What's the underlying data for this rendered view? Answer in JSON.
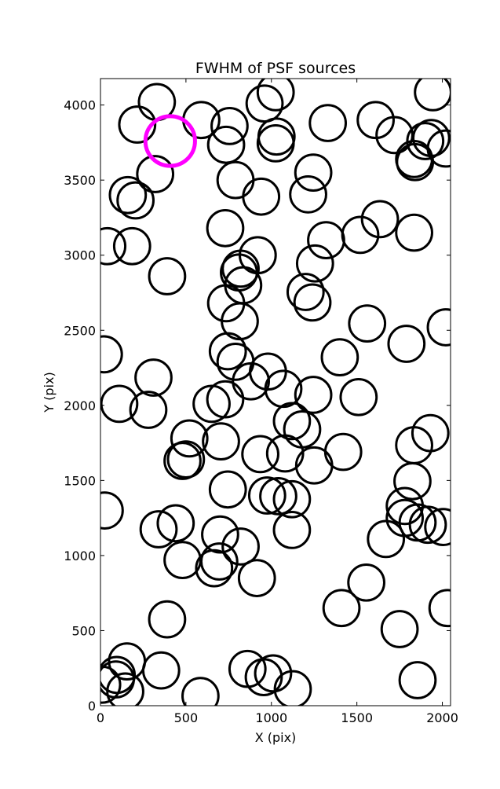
{
  "chart_data": {
    "type": "scatter",
    "title": "FWHM of PSF sources",
    "xlabel": "X (pix)",
    "ylabel": "Y (pix)",
    "xlim": [
      0,
      2048
    ],
    "ylim": [
      0,
      4176
    ],
    "xticks": [
      "0",
      "500",
      "1000",
      "1500",
      "2000"
    ],
    "xtick_values": [
      0,
      500,
      1000,
      1500,
      2000
    ],
    "yticks": [
      "0",
      "500",
      "1000",
      "1500",
      "2000",
      "2500",
      "3000",
      "3500",
      "4000"
    ],
    "ytick_values": [
      0,
      500,
      1000,
      1500,
      2000,
      2500,
      3000,
      3500,
      4000
    ],
    "grid": false,
    "legend": false,
    "marker": "open-circle",
    "circle_radius_pix": 105,
    "highlight_radius_pix": 145,
    "colors": {
      "points": "#000000",
      "highlight": "#ff00ff"
    },
    "highlight": {
      "x": 408,
      "y": 3760
    },
    "points": [
      [
        330,
        4020
      ],
      [
        215,
        3870
      ],
      [
        590,
        3900
      ],
      [
        755,
        3860
      ],
      [
        735,
        3735
      ],
      [
        320,
        3540
      ],
      [
        160,
        3400
      ],
      [
        205,
        3365
      ],
      [
        790,
        3500
      ],
      [
        940,
        3390
      ],
      [
        960,
        4010
      ],
      [
        1025,
        4085
      ],
      [
        1030,
        3790
      ],
      [
        1025,
        3745
      ],
      [
        1215,
        3405
      ],
      [
        1245,
        3550
      ],
      [
        1330,
        3880
      ],
      [
        1610,
        3900
      ],
      [
        1720,
        3800
      ],
      [
        1835,
        3640
      ],
      [
        1840,
        3620
      ],
      [
        1900,
        3760
      ],
      [
        1935,
        3780
      ],
      [
        1945,
        4085
      ],
      [
        2020,
        3710
      ],
      [
        1635,
        3240
      ],
      [
        1835,
        3150
      ],
      [
        1520,
        3135
      ],
      [
        1320,
        3100
      ],
      [
        1255,
        2945
      ],
      [
        1200,
        2755
      ],
      [
        1240,
        2685
      ],
      [
        40,
        3060
      ],
      [
        185,
        3060
      ],
      [
        390,
        2860
      ],
      [
        730,
        3180
      ],
      [
        920,
        3000
      ],
      [
        810,
        2885
      ],
      [
        820,
        2910
      ],
      [
        835,
        2800
      ],
      [
        735,
        2680
      ],
      [
        815,
        2560
      ],
      [
        2020,
        2520
      ],
      [
        1560,
        2545
      ],
      [
        1790,
        2410
      ],
      [
        1400,
        2320
      ],
      [
        1510,
        2055
      ],
      [
        1245,
        2070
      ],
      [
        20,
        2340
      ],
      [
        310,
        2185
      ],
      [
        110,
        2010
      ],
      [
        280,
        1970
      ],
      [
        745,
        2360
      ],
      [
        790,
        2290
      ],
      [
        880,
        2160
      ],
      [
        980,
        2225
      ],
      [
        1070,
        2110
      ],
      [
        650,
        2010
      ],
      [
        730,
        2040
      ],
      [
        705,
        1760
      ],
      [
        1120,
        1895
      ],
      [
        1180,
        1840
      ],
      [
        1930,
        1815
      ],
      [
        1835,
        1735
      ],
      [
        1420,
        1690
      ],
      [
        1250,
        1600
      ],
      [
        1080,
        1680
      ],
      [
        935,
        1675
      ],
      [
        520,
        1780
      ],
      [
        480,
        1630
      ],
      [
        500,
        1640
      ],
      [
        745,
        1440
      ],
      [
        975,
        1400
      ],
      [
        1040,
        1395
      ],
      [
        1120,
        1375
      ],
      [
        1825,
        1495
      ],
      [
        1780,
        1330
      ],
      [
        1780,
        1250
      ],
      [
        1855,
        1220
      ],
      [
        1915,
        1205
      ],
      [
        2005,
        1190
      ],
      [
        1670,
        1110
      ],
      [
        1120,
        1170
      ],
      [
        820,
        1060
      ],
      [
        700,
        1140
      ],
      [
        440,
        1215
      ],
      [
        340,
        1175
      ],
      [
        480,
        970
      ],
      [
        695,
        960
      ],
      [
        665,
        915
      ],
      [
        915,
        850
      ],
      [
        25,
        1300
      ],
      [
        1410,
        650
      ],
      [
        1555,
        820
      ],
      [
        1750,
        510
      ],
      [
        2030,
        650
      ],
      [
        1855,
        170
      ],
      [
        390,
        575
      ],
      [
        155,
        295
      ],
      [
        95,
        205
      ],
      [
        90,
        175
      ],
      [
        145,
        95
      ],
      [
        355,
        235
      ],
      [
        585,
        65
      ],
      [
        860,
        245
      ],
      [
        955,
        190
      ],
      [
        1010,
        215
      ],
      [
        1125,
        110
      ],
      [
        10,
        140
      ]
    ]
  }
}
